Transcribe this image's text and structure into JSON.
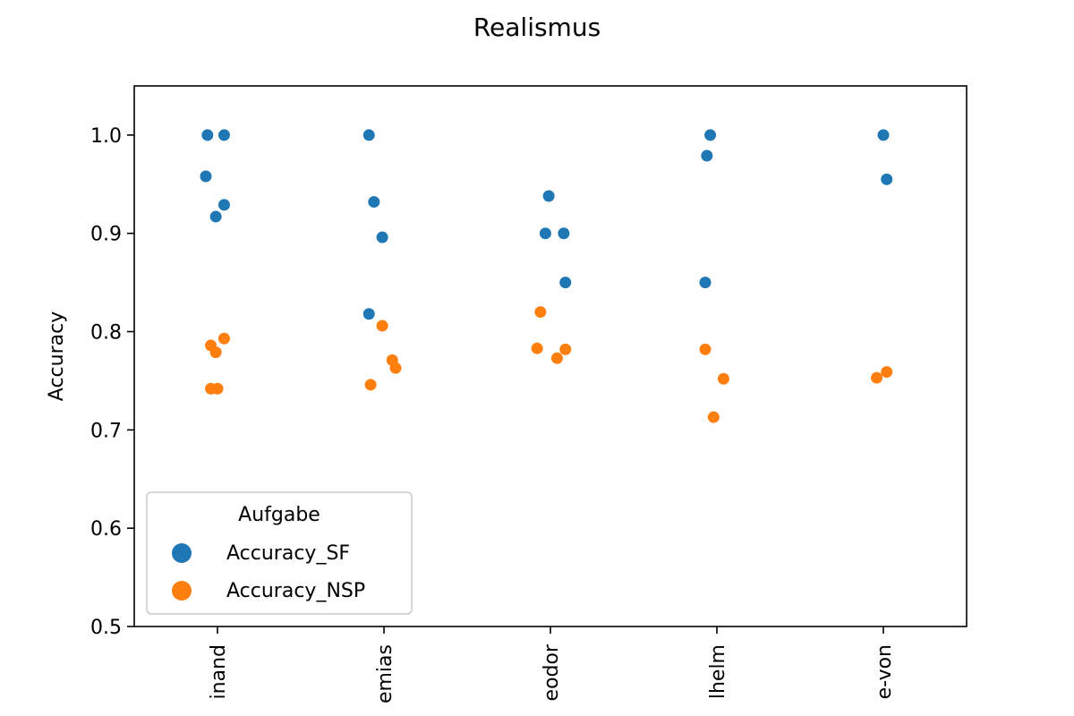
{
  "chart_data": {
    "type": "scatter",
    "title": "Realismus",
    "xlabel": "",
    "ylabel": "Accuracy",
    "ylim": [
      0.5,
      1.05
    ],
    "yticks": [
      0.5,
      0.6,
      0.7,
      0.8,
      0.9,
      1.0
    ],
    "categories": [
      "inand",
      "emias",
      "eodor",
      "lhelm",
      "e-von"
    ],
    "legend": {
      "title": "Aufgabe",
      "placement": "lower-left"
    },
    "series": [
      {
        "name": "Accuracy_SF",
        "color": "#1f77b4",
        "points": [
          {
            "cat": 0,
            "jitter": -0.06,
            "y": 1.0
          },
          {
            "cat": 0,
            "jitter": 0.04,
            "y": 1.0
          },
          {
            "cat": 0,
            "jitter": -0.07,
            "y": 0.958
          },
          {
            "cat": 0,
            "jitter": 0.04,
            "y": 0.929
          },
          {
            "cat": 0,
            "jitter": -0.01,
            "y": 0.917
          },
          {
            "cat": 1,
            "jitter": -0.09,
            "y": 1.0
          },
          {
            "cat": 1,
            "jitter": -0.06,
            "y": 0.932
          },
          {
            "cat": 1,
            "jitter": -0.01,
            "y": 0.896
          },
          {
            "cat": 1,
            "jitter": -0.09,
            "y": 0.818
          },
          {
            "cat": 2,
            "jitter": -0.01,
            "y": 0.938
          },
          {
            "cat": 2,
            "jitter": -0.03,
            "y": 0.9
          },
          {
            "cat": 2,
            "jitter": 0.08,
            "y": 0.9
          },
          {
            "cat": 2,
            "jitter": 0.09,
            "y": 0.85
          },
          {
            "cat": 3,
            "jitter": -0.04,
            "y": 1.0
          },
          {
            "cat": 3,
            "jitter": -0.06,
            "y": 0.979
          },
          {
            "cat": 3,
            "jitter": -0.07,
            "y": 0.85
          },
          {
            "cat": 4,
            "jitter": 0.0,
            "y": 1.0
          },
          {
            "cat": 4,
            "jitter": 0.02,
            "y": 0.955
          }
        ]
      },
      {
        "name": "Accuracy_NSP",
        "color": "#ff7f0e",
        "points": [
          {
            "cat": 0,
            "jitter": -0.04,
            "y": 0.786
          },
          {
            "cat": 0,
            "jitter": 0.04,
            "y": 0.793
          },
          {
            "cat": 0,
            "jitter": -0.01,
            "y": 0.779
          },
          {
            "cat": 0,
            "jitter": -0.04,
            "y": 0.742
          },
          {
            "cat": 0,
            "jitter": 0.0,
            "y": 0.742
          },
          {
            "cat": 1,
            "jitter": -0.01,
            "y": 0.806
          },
          {
            "cat": 1,
            "jitter": 0.05,
            "y": 0.771
          },
          {
            "cat": 1,
            "jitter": 0.07,
            "y": 0.763
          },
          {
            "cat": 1,
            "jitter": -0.08,
            "y": 0.746
          },
          {
            "cat": 2,
            "jitter": -0.06,
            "y": 0.82
          },
          {
            "cat": 2,
            "jitter": -0.08,
            "y": 0.783
          },
          {
            "cat": 2,
            "jitter": 0.09,
            "y": 0.782
          },
          {
            "cat": 2,
            "jitter": 0.04,
            "y": 0.773
          },
          {
            "cat": 3,
            "jitter": -0.07,
            "y": 0.782
          },
          {
            "cat": 3,
            "jitter": 0.04,
            "y": 0.752
          },
          {
            "cat": 3,
            "jitter": -0.02,
            "y": 0.713
          },
          {
            "cat": 4,
            "jitter": -0.04,
            "y": 0.753
          },
          {
            "cat": 4,
            "jitter": 0.02,
            "y": 0.759
          }
        ]
      }
    ]
  }
}
